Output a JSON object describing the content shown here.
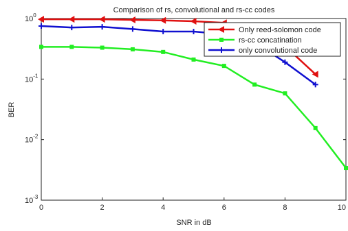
{
  "chart_data": {
    "type": "line",
    "title": "Comparison of rs, convolutional and rs-cc codes",
    "x_label": "SNR in dB",
    "y_label": "BER",
    "log_y": true,
    "grid": false,
    "legend": "upper right",
    "x": [
      0,
      1,
      2,
      3,
      4,
      5,
      6,
      7,
      8,
      9,
      10
    ],
    "xlim": [
      0,
      10
    ],
    "xticks": [
      0,
      2,
      4,
      6,
      8,
      10
    ],
    "ylim": [
      0.001,
      1
    ],
    "yticks": [
      {
        "value": 1,
        "label": "10",
        "exponent": "0"
      },
      {
        "value": 0.1,
        "label": "10",
        "exponent": "-1"
      },
      {
        "value": 0.01,
        "label": "10",
        "exponent": "-2"
      },
      {
        "value": 0.001,
        "label": "10",
        "exponent": "-3"
      }
    ],
    "series": [
      {
        "name": "Only reed-solomon code",
        "color": "#e01010",
        "marker": "triangle-left",
        "values": [
          0.97,
          0.97,
          0.97,
          0.95,
          0.93,
          0.9,
          0.85,
          0.65,
          0.35,
          0.12,
          null
        ]
      },
      {
        "name": "rs-cc concatination",
        "color": "#22ee22",
        "marker": "square",
        "values": [
          0.34,
          0.34,
          0.33,
          0.31,
          0.28,
          0.21,
          0.165,
          0.081,
          0.058,
          0.0155,
          0.0034
        ]
      },
      {
        "name": "only convolutional code",
        "color": "#1010d0",
        "marker": "plus",
        "values": [
          0.75,
          0.71,
          0.73,
          0.67,
          0.61,
          0.61,
          0.55,
          0.4,
          0.19,
          0.081,
          null
        ]
      }
    ]
  }
}
